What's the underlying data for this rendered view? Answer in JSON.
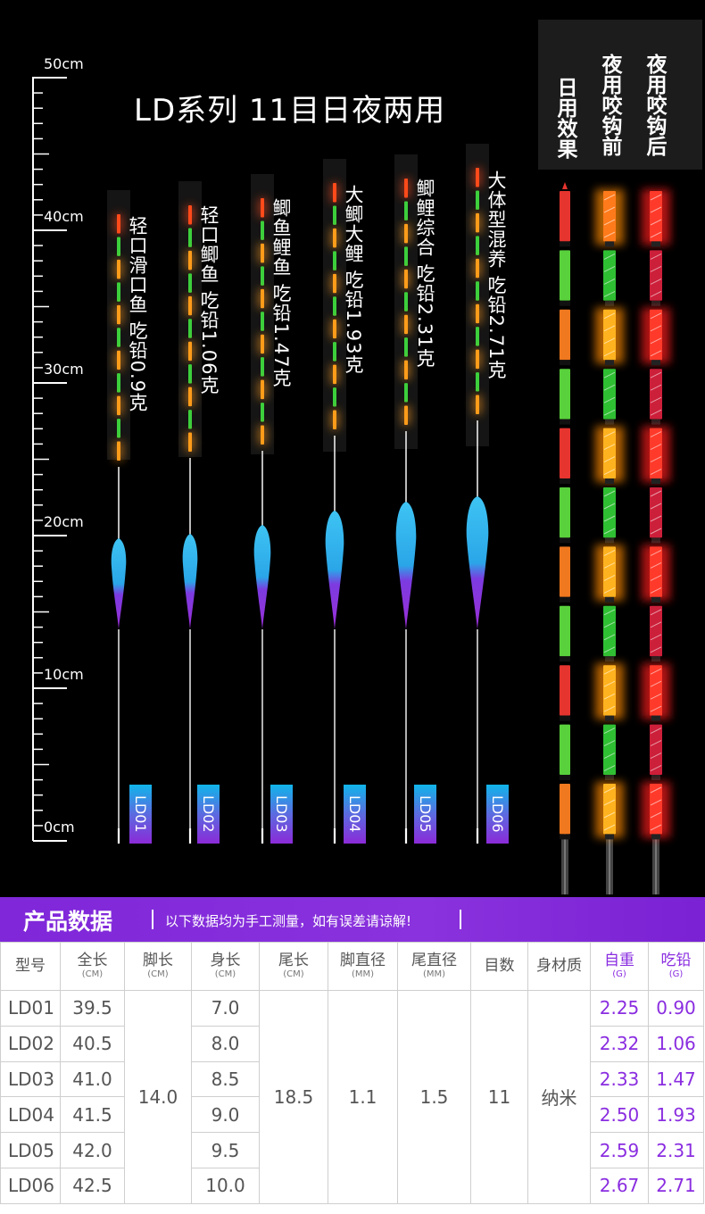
{
  "title": "LD系列  11目日夜两用",
  "ruler": {
    "labels": [
      "50cm",
      "40cm",
      "30cm",
      "20cm",
      "10cm",
      "0cm"
    ]
  },
  "floats": [
    {
      "model": "LD01",
      "desc": "轻口滑口鱼  吃铅0.9克"
    },
    {
      "model": "LD02",
      "desc": "轻口鲫鱼  吃铅1.06克"
    },
    {
      "model": "LD03",
      "desc": "鲫鱼鲤鱼  吃铅1.47克"
    },
    {
      "model": "LD04",
      "desc": "大鲫大鲤  吃铅1.93克"
    },
    {
      "model": "LD05",
      "desc": "鲫鲤综合  吃铅2.31克"
    },
    {
      "model": "LD06",
      "desc": "大体型混养  吃铅2.71克"
    }
  ],
  "effects": {
    "day": "日用效果",
    "night_before": "夜用咬钩前",
    "night_after": "夜用咬钩后"
  },
  "section": {
    "title": "产品数据",
    "note": "以下数据均为手工测量，如有误差请谅解!"
  },
  "table": {
    "headers": [
      {
        "label": "型号",
        "unit": ""
      },
      {
        "label": "全长",
        "unit": "(CM)"
      },
      {
        "label": "脚长",
        "unit": "(CM)"
      },
      {
        "label": "身长",
        "unit": "(CM)"
      },
      {
        "label": "尾长",
        "unit": "(CM)"
      },
      {
        "label": "脚直径",
        "unit": "(MM)"
      },
      {
        "label": "尾直径",
        "unit": "(MM)"
      },
      {
        "label": "目数",
        "unit": ""
      },
      {
        "label": "身材质",
        "unit": ""
      },
      {
        "label": "自重",
        "unit": "(G)"
      },
      {
        "label": "吃铅",
        "unit": "(G)"
      }
    ],
    "shared": {
      "foot_length": "14.0",
      "tail_length": "18.5",
      "foot_diameter": "1.1",
      "tail_diameter": "1.5",
      "marks": "11",
      "material": "纳米"
    },
    "rows": [
      {
        "model": "LD01",
        "total": "39.5",
        "body": "7.0",
        "weight": "2.25",
        "lead": "0.90"
      },
      {
        "model": "LD02",
        "total": "40.5",
        "body": "8.0",
        "weight": "2.32",
        "lead": "1.06"
      },
      {
        "model": "LD03",
        "total": "41.0",
        "body": "8.5",
        "weight": "2.33",
        "lead": "1.47"
      },
      {
        "model": "LD04",
        "total": "41.5",
        "body": "9.0",
        "weight": "2.50",
        "lead": "1.93"
      },
      {
        "model": "LD05",
        "total": "42.0",
        "body": "9.5",
        "weight": "2.59",
        "lead": "2.31"
      },
      {
        "model": "LD06",
        "total": "42.5",
        "body": "10.0",
        "weight": "2.67",
        "lead": "2.71"
      }
    ]
  },
  "colors": {
    "accent": "#8a2de0",
    "tag_top": "#11b5ea",
    "tag_bottom": "#8b2ad8"
  }
}
